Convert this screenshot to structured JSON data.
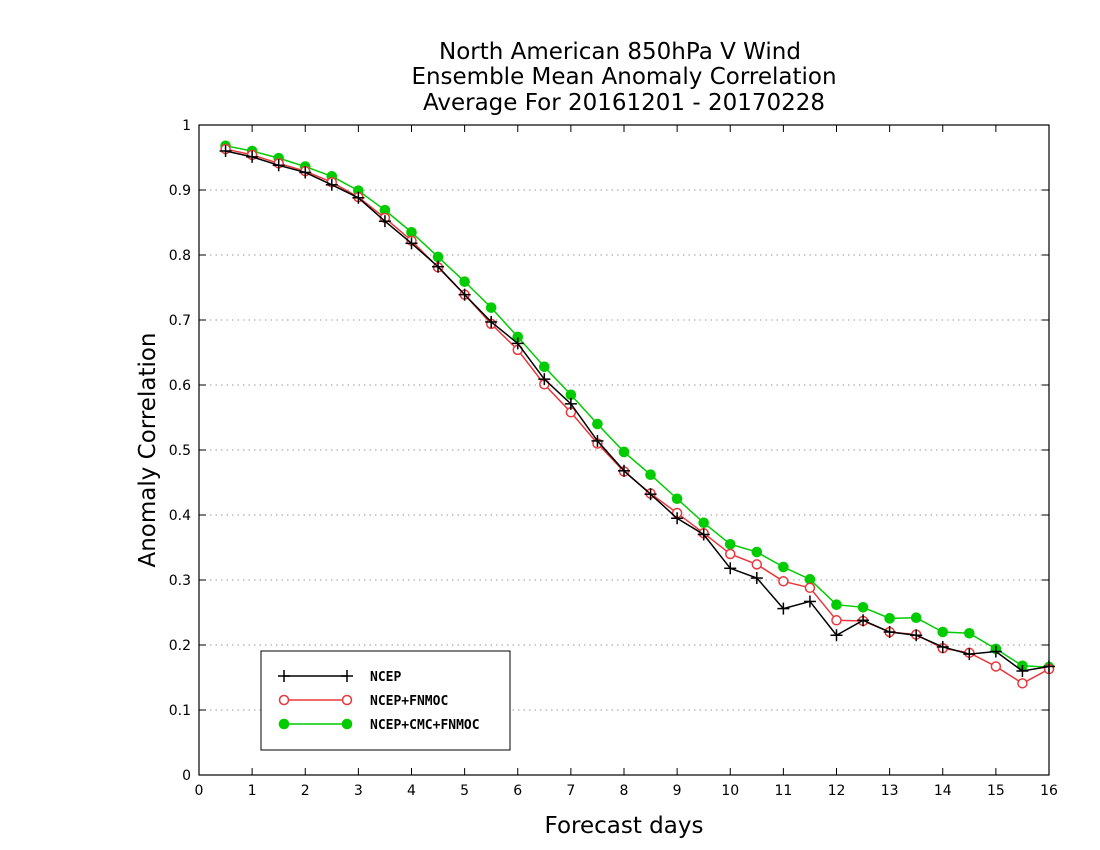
{
  "chart_data": {
    "type": "line",
    "title": [
      "North American 850hPa V Wind",
      "Ensemble Mean Anomaly Correlation",
      "Average For 20161201 - 20170228"
    ],
    "xlabel": "Forecast days",
    "ylabel": "Anomaly Correlation",
    "xlim": [
      0,
      16
    ],
    "ylim": [
      0,
      1
    ],
    "xticks": [
      0,
      1,
      2,
      3,
      4,
      5,
      6,
      7,
      8,
      9,
      10,
      11,
      12,
      13,
      14,
      15,
      16
    ],
    "yticks": [
      0,
      0.1,
      0.2,
      0.3,
      0.4,
      0.5,
      0.6,
      0.7,
      0.8,
      0.9,
      1
    ],
    "grid": "horizontal dotted",
    "legend_position": "bottom-left",
    "x": [
      0.5,
      1,
      1.5,
      2,
      2.5,
      3,
      3.5,
      4,
      4.5,
      5,
      5.5,
      6,
      6.5,
      7,
      7.5,
      8,
      8.5,
      9,
      9.5,
      10,
      10.5,
      11,
      11.5,
      12,
      12.5,
      13,
      13.5,
      14,
      14.5,
      15,
      15.5,
      16
    ],
    "series": [
      {
        "name": "NCEP",
        "color": "#000000",
        "marker": "plus",
        "values": [
          0.96,
          0.951,
          0.938,
          0.927,
          0.908,
          0.888,
          0.852,
          0.818,
          0.782,
          0.739,
          0.697,
          0.664,
          0.609,
          0.571,
          0.514,
          0.468,
          0.432,
          0.395,
          0.37,
          0.318,
          0.303,
          0.256,
          0.267,
          0.215,
          0.238,
          0.22,
          0.215,
          0.197,
          0.186,
          0.19,
          0.16,
          0.167
        ]
      },
      {
        "name": "NCEP+FNMOC",
        "color": "#e8383d",
        "marker": "open-circle",
        "values": [
          0.963,
          0.954,
          0.941,
          0.929,
          0.912,
          0.889,
          0.857,
          0.822,
          0.781,
          0.739,
          0.694,
          0.654,
          0.601,
          0.558,
          0.51,
          0.467,
          0.433,
          0.403,
          0.372,
          0.34,
          0.324,
          0.298,
          0.288,
          0.238,
          0.237,
          0.22,
          0.216,
          0.195,
          0.188,
          0.167,
          0.141,
          0.163
        ]
      },
      {
        "name": "NCEP+CMC+FNMOC",
        "color": "#00cc00",
        "marker": "filled-circle",
        "values": [
          0.968,
          0.96,
          0.949,
          0.936,
          0.921,
          0.899,
          0.869,
          0.835,
          0.797,
          0.759,
          0.719,
          0.674,
          0.628,
          0.585,
          0.54,
          0.497,
          0.462,
          0.425,
          0.388,
          0.355,
          0.343,
          0.32,
          0.301,
          0.262,
          0.258,
          0.241,
          0.242,
          0.22,
          0.218,
          0.194,
          0.168,
          0.166
        ]
      }
    ]
  }
}
